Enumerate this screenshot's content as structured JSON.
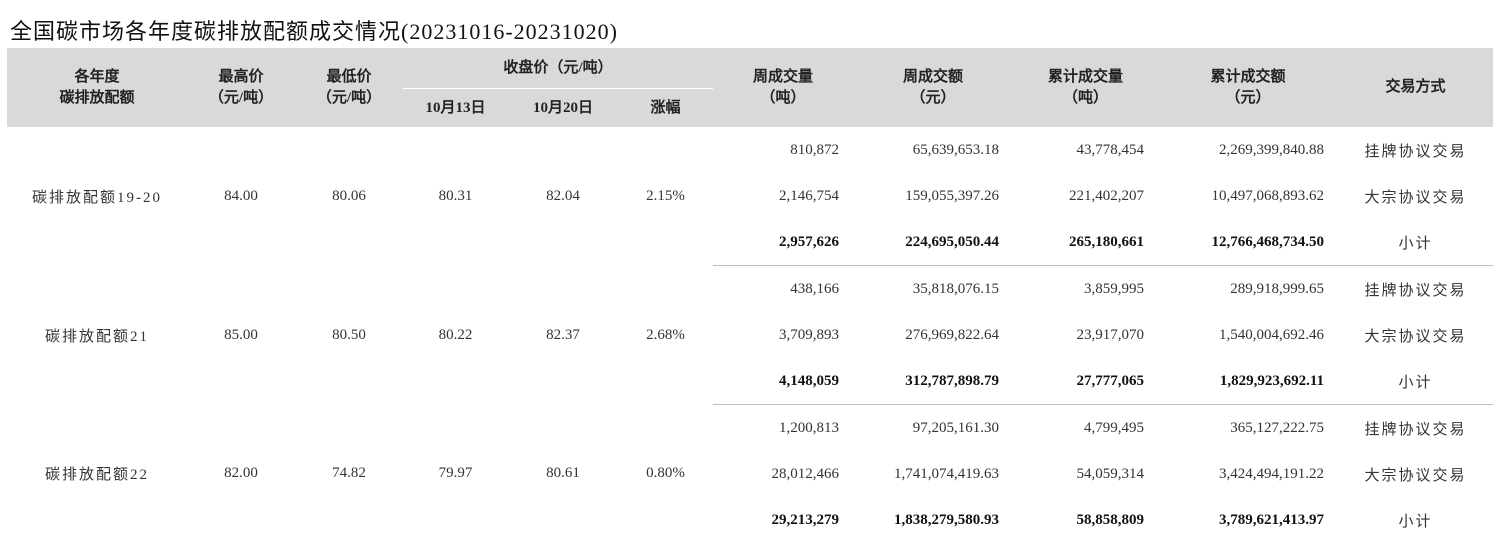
{
  "title": "全国碳市场各年度碳排放配额成交情况(20231016-20231020)",
  "header": {
    "vintage": [
      "各年度",
      "碳排放配额"
    ],
    "high": [
      "最高价",
      "（元/吨）"
    ],
    "low": [
      "最低价",
      "（元/吨）"
    ],
    "close": "收盘价（元/吨）",
    "close_d1": "10月13日",
    "close_d2": "10月20日",
    "change": "涨幅",
    "week_vol": [
      "周成交量",
      "（吨）"
    ],
    "week_amt": [
      "周成交额",
      "（元）"
    ],
    "cum_vol": [
      "累计成交量",
      "（吨）"
    ],
    "cum_amt": [
      "累计成交额",
      "（元）"
    ],
    "method": "交易方式"
  },
  "groups": [
    {
      "name": "碳排放配额19-20",
      "high": "84.00",
      "low": "80.06",
      "close_d1": "80.31",
      "close_d2": "82.04",
      "change": "2.15%",
      "rows": [
        {
          "week_vol": "810,872",
          "week_amt": "65,639,653.18",
          "cum_vol": "43,778,454",
          "cum_amt": "2,269,399,840.88",
          "method": "挂牌协议交易"
        },
        {
          "week_vol": "2,146,754",
          "week_amt": "159,055,397.26",
          "cum_vol": "221,402,207",
          "cum_amt": "10,497,068,893.62",
          "method": "大宗协议交易"
        },
        {
          "week_vol": "2,957,626",
          "week_amt": "224,695,050.44",
          "cum_vol": "265,180,661",
          "cum_amt": "12,766,468,734.50",
          "method": "小计"
        }
      ]
    },
    {
      "name": "碳排放配额21",
      "high": "85.00",
      "low": "80.50",
      "close_d1": "80.22",
      "close_d2": "82.37",
      "change": "2.68%",
      "rows": [
        {
          "week_vol": "438,166",
          "week_amt": "35,818,076.15",
          "cum_vol": "3,859,995",
          "cum_amt": "289,918,999.65",
          "method": "挂牌协议交易"
        },
        {
          "week_vol": "3,709,893",
          "week_amt": "276,969,822.64",
          "cum_vol": "23,917,070",
          "cum_amt": "1,540,004,692.46",
          "method": "大宗协议交易"
        },
        {
          "week_vol": "4,148,059",
          "week_amt": "312,787,898.79",
          "cum_vol": "27,777,065",
          "cum_amt": "1,829,923,692.11",
          "method": "小计"
        }
      ]
    },
    {
      "name": "碳排放配额22",
      "high": "82.00",
      "low": "74.82",
      "close_d1": "79.97",
      "close_d2": "80.61",
      "change": "0.80%",
      "rows": [
        {
          "week_vol": "1,200,813",
          "week_amt": "97,205,161.30",
          "cum_vol": "4,799,495",
          "cum_amt": "365,127,222.75",
          "method": "挂牌协议交易"
        },
        {
          "week_vol": "28,012,466",
          "week_amt": "1,741,074,419.63",
          "cum_vol": "54,059,314",
          "cum_amt": "3,424,494,191.22",
          "method": "大宗协议交易"
        },
        {
          "week_vol": "29,213,279",
          "week_amt": "1,838,279,580.93",
          "cum_vol": "58,858,809",
          "cum_amt": "3,789,621,413.97",
          "method": "小计"
        }
      ]
    }
  ]
}
